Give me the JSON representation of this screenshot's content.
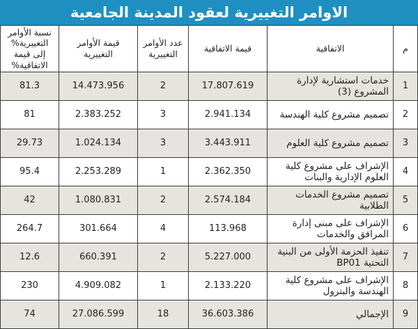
{
  "title": "الاوامر التغييرية لعقود المدينة الجامعية",
  "headers": {
    "m": "م",
    "agreement": "الاتفاقية",
    "value": "قيمة الاتفاقية",
    "count": "عدد الأوامر التغييرية",
    "change_value": "قيمة الأوامر التغييرية",
    "ratio": "نسبة الأوامر التغييرية% إلى قيمة الاتفاقية%"
  },
  "rows": [
    {
      "m": "1",
      "agreement": "خدمات استشارية لإدارة المشروع (3)",
      "value": "17.807.619",
      "count": "2",
      "change_value": "14.473.956",
      "ratio": "81.3"
    },
    {
      "m": "2",
      "agreement": "تصميم مشروع كلية الهندسة",
      "value": "2.941.134",
      "count": "3",
      "change_value": "2.383.252",
      "ratio": "81"
    },
    {
      "m": "3",
      "agreement": "تصميم مشروع كلية العلوم",
      "value": "3.443.911",
      "count": "3",
      "change_value": "1.024.134",
      "ratio": "29.73"
    },
    {
      "m": "4",
      "agreement": "الإشراف على مشروع كلية العلوم الإدارية والبنات",
      "value": "2.362.350",
      "count": "1",
      "change_value": "2.253.289",
      "ratio": "95.4"
    },
    {
      "m": "5",
      "agreement": "تصميم مشروع الخدمات الطلابية",
      "value": "2.574.184",
      "count": "2",
      "change_value": "1.080.831",
      "ratio": "42"
    },
    {
      "m": "6",
      "agreement": "الإشراف على مبنى إدارة المرافق والخدمات",
      "value": "113.968",
      "count": "4",
      "change_value": "301.664",
      "ratio": "264.7"
    },
    {
      "m": "7",
      "agreement": "تنفيذ الحزمة الأولى من البنية التحتية BP01",
      "value": "5.227.000",
      "count": "2",
      "change_value": "660.391",
      "ratio": "12.6"
    },
    {
      "m": "8",
      "agreement": "الإشراف على مشروع كلية الهندسة والبترول",
      "value": "2.133.220",
      "count": "1",
      "change_value": "4.909.082",
      "ratio": "230"
    },
    {
      "m": "9",
      "agreement": "الإجمالي",
      "value": "36.603.386",
      "count": "18",
      "change_value": "27.086.599",
      "ratio": "74"
    }
  ]
}
